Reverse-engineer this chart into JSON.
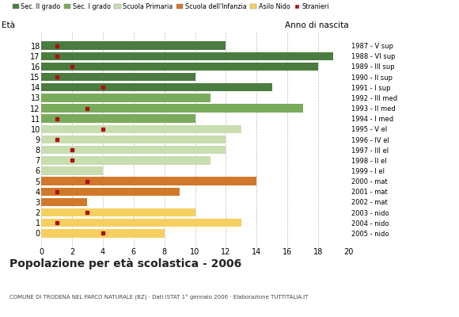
{
  "ages": [
    18,
    17,
    16,
    15,
    14,
    13,
    12,
    11,
    10,
    9,
    8,
    7,
    6,
    5,
    4,
    3,
    2,
    1,
    0
  ],
  "values": [
    12,
    19,
    18,
    10,
    15,
    11,
    17,
    10,
    13,
    12,
    12,
    11,
    4,
    14,
    9,
    3,
    10,
    13,
    8
  ],
  "stranieri": [
    1,
    1,
    2,
    1,
    4,
    0,
    3,
    1,
    4,
    1,
    2,
    2,
    0,
    3,
    1,
    0,
    3,
    1,
    4
  ],
  "bar_colors": [
    "#4a7c3f",
    "#4a7c3f",
    "#4a7c3f",
    "#4a7c3f",
    "#4a7c3f",
    "#7aab5c",
    "#7aab5c",
    "#7aab5c",
    "#c8ddb0",
    "#c8ddb0",
    "#c8ddb0",
    "#c8ddb0",
    "#c8ddb0",
    "#d2782a",
    "#d2782a",
    "#d2782a",
    "#f5d060",
    "#f5d060",
    "#f5d060"
  ],
  "right_labels": [
    "1987 - V sup",
    "1988 - VI sup",
    "1989 - III sup",
    "1990 - II sup",
    "1991 - I sup",
    "1992 - III med",
    "1993 - II med",
    "1994 - I med",
    "1995 - V el",
    "1996 - IV el",
    "1997 - III el",
    "1998 - II el",
    "1999 - I el",
    "2000 - mat",
    "2001 - mat",
    "2002 - mat",
    "2003 - nido",
    "2004 - nido",
    "2005 - nido"
  ],
  "legend_labels": [
    "Sec. II grado",
    "Sec. I grado",
    "Scuola Primaria",
    "Scuola dell'Infanzia",
    "Asilo Nido",
    "Stranieri"
  ],
  "legend_colors": [
    "#4a7c3f",
    "#7aab5c",
    "#c8ddb0",
    "#d2782a",
    "#f5d060",
    "#aa1111"
  ],
  "stranieri_color": "#aa1111",
  "title": "Popolazione per età scolastica - 2006",
  "subtitle": "COMUNE DI TRODENA NEL PARCO NATURALE (BZ) · Dati ISTAT 1° gennaio 2006 · Elaborazione TUTTITALIA.IT",
  "eta_label": "Età",
  "anno_label": "Anno di nascita",
  "xlim": [
    0,
    20
  ],
  "xticks": [
    0,
    2,
    4,
    6,
    8,
    10,
    12,
    14,
    16,
    18,
    20
  ],
  "bg_color": "#ffffff",
  "bar_height": 0.8
}
